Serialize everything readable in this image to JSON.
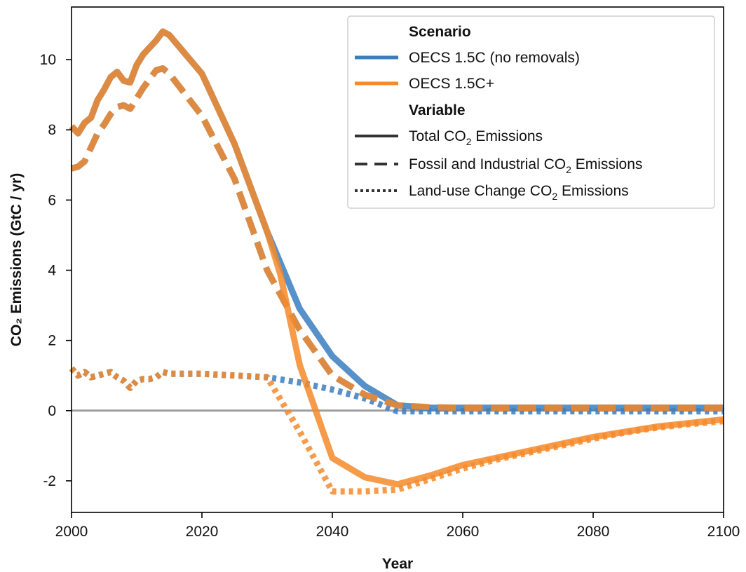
{
  "chart_data": {
    "type": "line",
    "xlabel": "Year",
    "ylabel": "CO₂ Emissions (GtC / yr)",
    "xlim": [
      2000,
      2100
    ],
    "ylim": [
      -2.9,
      11.5
    ],
    "x_ticks": [
      2000,
      2020,
      2040,
      2060,
      2080,
      2100
    ],
    "x_tick_labels": [
      "2000",
      "2020",
      "2040",
      "2060",
      "2080",
      "2100"
    ],
    "y_ticks": [
      -2,
      0,
      2,
      4,
      6,
      8,
      10
    ],
    "y_tick_labels": [
      "-2",
      "0",
      "2",
      "4",
      "6",
      "8",
      "10"
    ],
    "zero_line": true,
    "grid": false,
    "legend": {
      "placement": "top-right",
      "scenario_title": "Scenario",
      "variable_title": "Variable",
      "scenarios": [
        {
          "label": "OECS 1.5C (no removals)",
          "color": "#3a7ebf"
        },
        {
          "label": "OECS 1.5C+",
          "color": "#f58a2a"
        }
      ],
      "variables": [
        {
          "prefix": "Total CO",
          "sub": "2",
          "suffix": " Emissions",
          "style": "solid"
        },
        {
          "prefix": "Fossil and Industrial CO",
          "sub": "2",
          "suffix": " Emissions",
          "style": "dashed"
        },
        {
          "prefix": "Land-use Change CO",
          "sub": "2",
          "suffix": " Emissions",
          "style": "dotted"
        }
      ]
    },
    "series": [
      {
        "scenario": "OECS 1.5C (no removals)",
        "variable": "Total CO2 Emissions",
        "style": "solid",
        "color": "#3a7ebf",
        "x": [
          2000,
          2001,
          2002,
          2003,
          2004,
          2005,
          2006,
          2007,
          2008,
          2009,
          2010,
          2011,
          2012,
          2013,
          2014,
          2015,
          2020,
          2025,
          2030,
          2035,
          2040,
          2045,
          2050,
          2055,
          2060,
          2070,
          2080,
          2090,
          2100
        ],
        "y": [
          8.1,
          7.9,
          8.2,
          8.35,
          8.85,
          9.15,
          9.5,
          9.65,
          9.4,
          9.35,
          9.85,
          10.15,
          10.35,
          10.55,
          10.8,
          10.7,
          9.6,
          7.6,
          5.1,
          2.9,
          1.55,
          0.7,
          0.15,
          0.08,
          0.08,
          0.08,
          0.08,
          0.08,
          0.08
        ]
      },
      {
        "scenario": "OECS 1.5C (no removals)",
        "variable": "Fossil and Industrial CO2 Emissions",
        "style": "dashed",
        "color": "#3a7ebf",
        "x": [
          2000,
          2001,
          2002,
          2003,
          2004,
          2005,
          2006,
          2007,
          2008,
          2009,
          2010,
          2011,
          2012,
          2013,
          2014,
          2015,
          2020,
          2025,
          2030,
          2035,
          2040,
          2045,
          2050,
          2055,
          2060,
          2070,
          2080,
          2090,
          2100
        ],
        "y": [
          6.9,
          6.95,
          7.1,
          7.5,
          7.9,
          8.15,
          8.45,
          8.65,
          8.7,
          8.6,
          8.9,
          9.2,
          9.45,
          9.7,
          9.75,
          9.6,
          8.4,
          6.6,
          4.0,
          2.3,
          1.0,
          0.45,
          0.15,
          0.08,
          0.08,
          0.08,
          0.08,
          0.08,
          0.08
        ]
      },
      {
        "scenario": "OECS 1.5C (no removals)",
        "variable": "Land-use Change CO2 Emissions",
        "style": "dotted",
        "color": "#3a7ebf",
        "x": [
          2000,
          2001,
          2002,
          2003,
          2004,
          2005,
          2006,
          2007,
          2008,
          2009,
          2010,
          2011,
          2012,
          2013,
          2014,
          2015,
          2020,
          2025,
          2030,
          2035,
          2040,
          2045,
          2050,
          2055,
          2060,
          2070,
          2080,
          2090,
          2100
        ],
        "y": [
          1.2,
          1.0,
          1.1,
          0.95,
          1.0,
          1.05,
          1.1,
          0.95,
          0.85,
          0.65,
          0.85,
          0.9,
          0.9,
          0.95,
          1.1,
          1.05,
          1.05,
          1.0,
          0.95,
          0.8,
          0.6,
          0.35,
          -0.02,
          -0.02,
          -0.02,
          -0.02,
          -0.02,
          -0.02,
          -0.02
        ]
      },
      {
        "scenario": "OECS 1.5C+",
        "variable": "Total CO2 Emissions",
        "style": "solid",
        "color": "#f58a2a",
        "x": [
          2000,
          2001,
          2002,
          2003,
          2004,
          2005,
          2006,
          2007,
          2008,
          2009,
          2010,
          2011,
          2012,
          2013,
          2014,
          2015,
          2020,
          2025,
          2030,
          2032,
          2035,
          2040,
          2045,
          2050,
          2055,
          2060,
          2065,
          2070,
          2075,
          2080,
          2085,
          2090,
          2095,
          2100
        ],
        "y": [
          8.1,
          7.9,
          8.2,
          8.35,
          8.85,
          9.15,
          9.5,
          9.65,
          9.4,
          9.35,
          9.85,
          10.15,
          10.35,
          10.55,
          10.8,
          10.7,
          9.6,
          7.6,
          5.1,
          3.9,
          1.3,
          -1.35,
          -1.9,
          -2.1,
          -1.85,
          -1.55,
          -1.35,
          -1.15,
          -0.95,
          -0.75,
          -0.6,
          -0.45,
          -0.35,
          -0.25
        ]
      },
      {
        "scenario": "OECS 1.5C+",
        "variable": "Fossil and Industrial CO2 Emissions",
        "style": "dashed",
        "color": "#f58a2a",
        "x": [
          2000,
          2001,
          2002,
          2003,
          2004,
          2005,
          2006,
          2007,
          2008,
          2009,
          2010,
          2011,
          2012,
          2013,
          2014,
          2015,
          2020,
          2025,
          2030,
          2035,
          2040,
          2045,
          2050,
          2055,
          2060,
          2070,
          2080,
          2090,
          2100
        ],
        "y": [
          6.9,
          6.95,
          7.1,
          7.5,
          7.9,
          8.15,
          8.45,
          8.65,
          8.7,
          8.6,
          8.9,
          9.2,
          9.45,
          9.7,
          9.75,
          9.6,
          8.4,
          6.6,
          4.0,
          2.3,
          1.0,
          0.45,
          0.15,
          0.1,
          0.08,
          0.08,
          0.08,
          0.08,
          0.08
        ]
      },
      {
        "scenario": "OECS 1.5C+",
        "variable": "Land-use Change CO2 Emissions",
        "style": "dotted",
        "color": "#f58a2a",
        "x": [
          2000,
          2001,
          2002,
          2003,
          2004,
          2005,
          2006,
          2007,
          2008,
          2009,
          2010,
          2011,
          2012,
          2013,
          2014,
          2015,
          2020,
          2025,
          2030,
          2035,
          2040,
          2045,
          2050,
          2055,
          2060,
          2065,
          2070,
          2075,
          2080,
          2085,
          2090,
          2095,
          2100
        ],
        "y": [
          1.2,
          1.0,
          1.1,
          0.95,
          1.0,
          1.05,
          1.1,
          0.95,
          0.85,
          0.65,
          0.85,
          0.9,
          0.9,
          0.95,
          1.1,
          1.05,
          1.05,
          1.0,
          0.95,
          -0.6,
          -2.3,
          -2.3,
          -2.25,
          -1.95,
          -1.65,
          -1.4,
          -1.2,
          -1.0,
          -0.8,
          -0.62,
          -0.48,
          -0.38,
          -0.3
        ]
      }
    ]
  }
}
